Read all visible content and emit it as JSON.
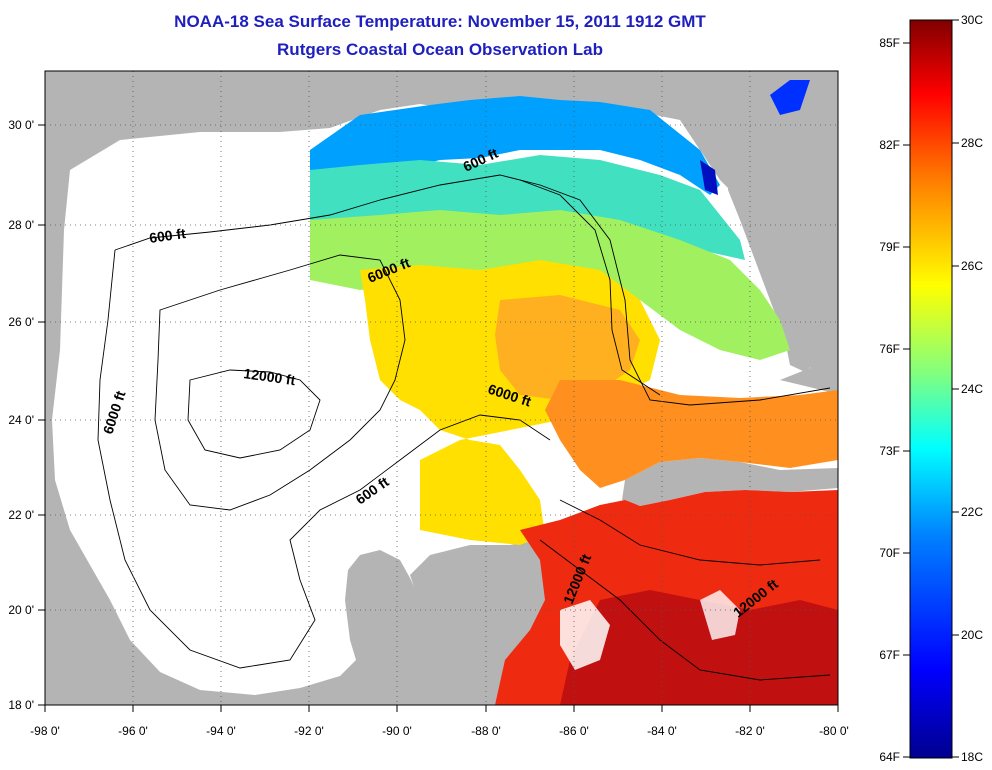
{
  "title": {
    "line1": "NOAA-18 Sea Surface Temperature:  November 15, 2011 1912 GMT",
    "line2": "Rutgers Coastal Ocean Observation Lab"
  },
  "map": {
    "lon_range": [
      -98,
      -80
    ],
    "lat_range": [
      18,
      31
    ],
    "x_ticks": [
      "-98 0'",
      "-96 0'",
      "-94 0'",
      "-92 0'",
      "-90 0'",
      "-88 0'",
      "-86 0'",
      "-84 0'",
      "-82 0'",
      "-80 0'"
    ],
    "y_ticks": [
      "18 0'",
      "20 0'",
      "22 0'",
      "24 0'",
      "26 0'",
      "28 0'",
      "30 0'"
    ],
    "contour_labels": [
      "600 ft",
      "600 ft",
      "600 ft",
      "6000 ft",
      "6000 ft",
      "6000 ft",
      "12000 ft",
      "12000 ft",
      "12000 ft"
    ],
    "land_color": "#b4b4b4",
    "nodata_color": "#ffffff"
  },
  "colorbar": {
    "fahrenheit_labels": [
      "85F",
      "82F",
      "79F",
      "76F",
      "73F",
      "70F",
      "67F",
      "64F"
    ],
    "celsius_labels": [
      "30C",
      "28C",
      "26C",
      "24C",
      "22C",
      "20C",
      "18C"
    ],
    "range_c": [
      18,
      30
    ],
    "colors": [
      "#00008f",
      "#0000ff",
      "#0080ff",
      "#00ffff",
      "#80ff80",
      "#ffff00",
      "#ff8000",
      "#ff0000",
      "#800000"
    ]
  }
}
